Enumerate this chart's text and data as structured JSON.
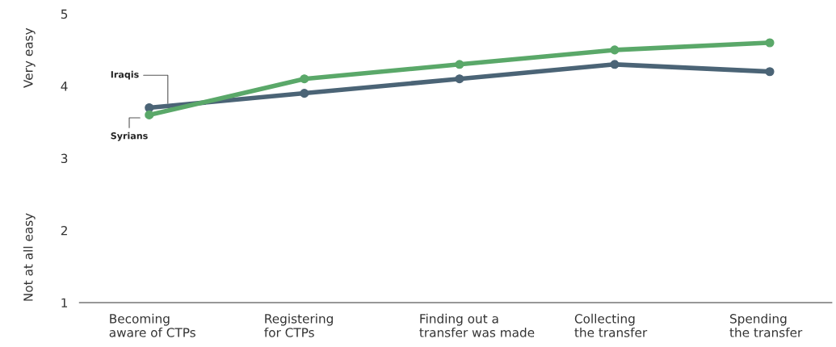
{
  "chart_data": {
    "type": "line",
    "categories": [
      "Becoming\naware of CTPs",
      "Registering\nfor CTPs",
      "Finding out a\ntransfer was made",
      "Collecting\nthe transfer",
      "Spending\nthe transfer"
    ],
    "series": [
      {
        "name": "Iraqis",
        "color": "#4b6476",
        "values": [
          3.7,
          3.9,
          4.1,
          4.3,
          4.2
        ]
      },
      {
        "name": "Syrians",
        "color": "#5aa869",
        "values": [
          3.6,
          4.1,
          4.3,
          4.5,
          4.6
        ]
      }
    ],
    "ylim": [
      1,
      5
    ],
    "yticks": [
      1,
      2,
      3,
      4,
      5
    ],
    "annotations": [
      "Very easy",
      "Not at all easy"
    ],
    "marker": "circle",
    "grid": false,
    "legend": false
  }
}
